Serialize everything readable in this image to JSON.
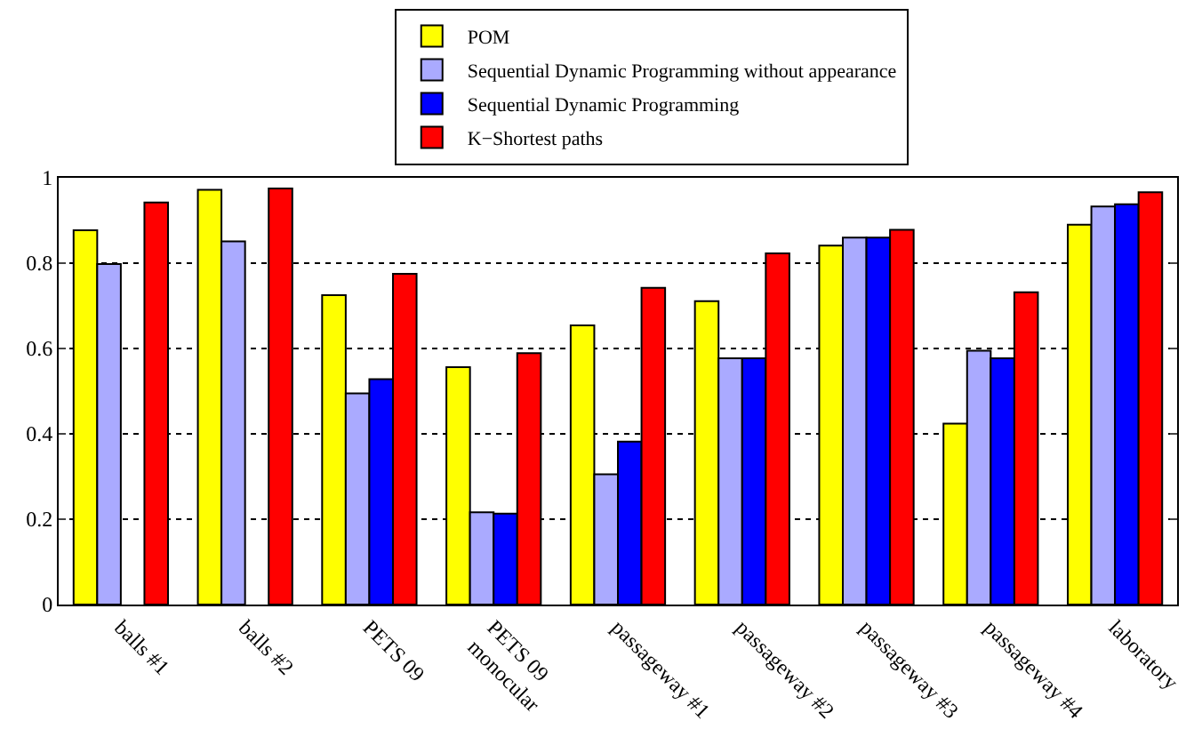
{
  "chart_data": {
    "type": "bar",
    "categories": [
      "balls #1",
      "balls #2",
      "PETS 09",
      "PETS 09\nmonocular",
      "passageway #1",
      "passageway #2",
      "passageway #3",
      "passageway #4",
      "laboratory"
    ],
    "series": [
      {
        "name": "POM",
        "color": "#ffff00",
        "values": [
          0.877,
          0.972,
          0.725,
          0.556,
          0.654,
          0.711,
          0.841,
          0.424,
          0.89
        ]
      },
      {
        "name": "Sequential Dynamic Programming without appearance",
        "color": "#aaaaff",
        "values": [
          0.798,
          0.851,
          0.495,
          0.216,
          0.305,
          0.577,
          0.86,
          0.595,
          0.933
        ]
      },
      {
        "name": "Sequential Dynamic Programming",
        "color": "#0000ff",
        "values": [
          null,
          null,
          0.528,
          0.213,
          0.382,
          0.577,
          0.86,
          0.577,
          0.938
        ]
      },
      {
        "name": "K−Shortest paths",
        "color": "#ff0000",
        "values": [
          0.942,
          0.975,
          0.775,
          0.589,
          0.742,
          0.823,
          0.878,
          0.732,
          0.966
        ]
      }
    ],
    "ylim": [
      0,
      1
    ],
    "yticks": [
      0,
      0.2,
      0.4,
      0.6,
      0.8,
      1
    ],
    "grid": "y",
    "legend": "top"
  }
}
